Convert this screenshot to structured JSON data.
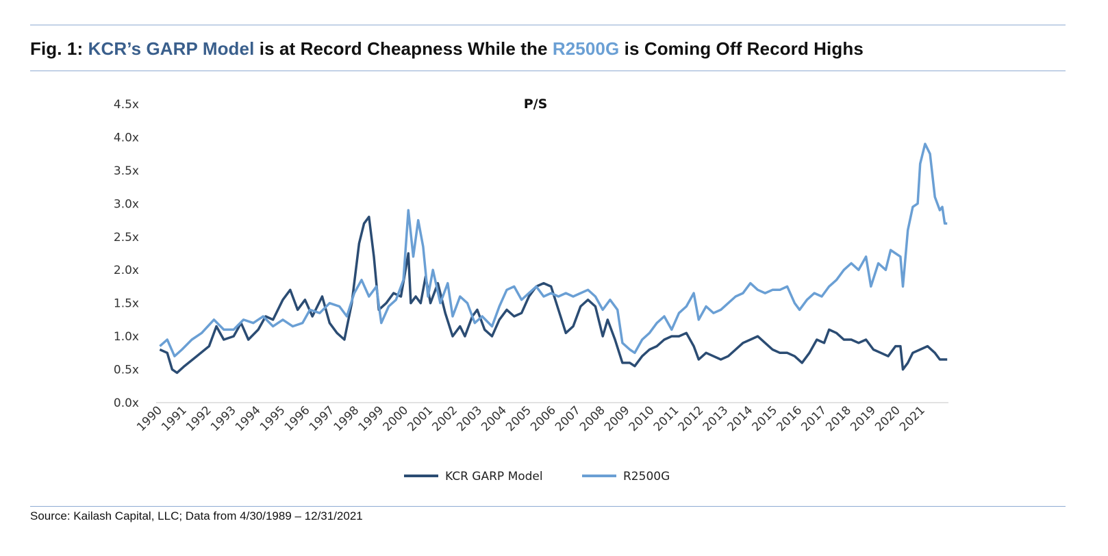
{
  "header": {
    "title_prefix": "Fig. 1: ",
    "title_hl1": "KCR’s GARP Model",
    "title_mid": " is at Record Cheapness While the ",
    "title_hl2": "R2500G",
    "title_suffix": " is Coming Off Record Highs"
  },
  "footer": {
    "source": "Source: Kailash Capital, LLC; Data from 4/30/1989 – 12/31/2021"
  },
  "chart_data": {
    "type": "line",
    "title": "P/S",
    "xlabel": "",
    "ylabel": "",
    "ylim": [
      0,
      4.5
    ],
    "y_ticks": [
      "0.0x",
      "0.5x",
      "1.0x",
      "1.5x",
      "2.0x",
      "2.5x",
      "3.0x",
      "3.5x",
      "4.0x",
      "4.5x"
    ],
    "x_ticks": [
      "1990",
      "1991",
      "1992",
      "1993",
      "1994",
      "1995",
      "1996",
      "1997",
      "1998",
      "1999",
      "2000",
      "2001",
      "2002",
      "2003",
      "2004",
      "2005",
      "2006",
      "2007",
      "2008",
      "2009",
      "2010",
      "2011",
      "2012",
      "2013",
      "2014",
      "2015",
      "2016",
      "2017",
      "2018",
      "2019",
      "2020",
      "2021"
    ],
    "grid": false,
    "legend": "bottom",
    "colors": {
      "KCR GARP Model": "#2b4c73",
      "R2500G": "#6a9fd4",
      "rules": "#8eaad2"
    },
    "series": [
      {
        "name": "KCR GARP Model",
        "points": [
          [
            1990.0,
            0.8
          ],
          [
            1990.3,
            0.75
          ],
          [
            1990.5,
            0.5
          ],
          [
            1990.7,
            0.45
          ],
          [
            1991.0,
            0.55
          ],
          [
            1991.5,
            0.7
          ],
          [
            1992.0,
            0.85
          ],
          [
            1992.3,
            1.15
          ],
          [
            1992.6,
            0.95
          ],
          [
            1993.0,
            1.0
          ],
          [
            1993.3,
            1.2
          ],
          [
            1993.6,
            0.95
          ],
          [
            1994.0,
            1.1
          ],
          [
            1994.3,
            1.3
          ],
          [
            1994.6,
            1.25
          ],
          [
            1995.0,
            1.55
          ],
          [
            1995.3,
            1.7
          ],
          [
            1995.6,
            1.4
          ],
          [
            1995.9,
            1.55
          ],
          [
            1996.2,
            1.3
          ],
          [
            1996.6,
            1.6
          ],
          [
            1996.9,
            1.2
          ],
          [
            1997.2,
            1.05
          ],
          [
            1997.5,
            0.95
          ],
          [
            1997.8,
            1.5
          ],
          [
            1998.1,
            2.4
          ],
          [
            1998.3,
            2.7
          ],
          [
            1998.5,
            2.8
          ],
          [
            1998.7,
            2.2
          ],
          [
            1998.9,
            1.4
          ],
          [
            1999.2,
            1.5
          ],
          [
            1999.5,
            1.65
          ],
          [
            1999.8,
            1.6
          ],
          [
            2000.1,
            2.25
          ],
          [
            2000.2,
            1.5
          ],
          [
            2000.4,
            1.6
          ],
          [
            2000.6,
            1.5
          ],
          [
            2000.8,
            1.9
          ],
          [
            2001.0,
            1.5
          ],
          [
            2001.3,
            1.8
          ],
          [
            2001.6,
            1.35
          ],
          [
            2001.9,
            1.0
          ],
          [
            2002.2,
            1.15
          ],
          [
            2002.4,
            1.0
          ],
          [
            2002.7,
            1.3
          ],
          [
            2002.9,
            1.4
          ],
          [
            2003.2,
            1.1
          ],
          [
            2003.5,
            1.0
          ],
          [
            2003.8,
            1.25
          ],
          [
            2004.1,
            1.4
          ],
          [
            2004.4,
            1.3
          ],
          [
            2004.7,
            1.35
          ],
          [
            2005.0,
            1.6
          ],
          [
            2005.3,
            1.75
          ],
          [
            2005.6,
            1.8
          ],
          [
            2005.9,
            1.75
          ],
          [
            2006.2,
            1.4
          ],
          [
            2006.5,
            1.05
          ],
          [
            2006.8,
            1.15
          ],
          [
            2007.1,
            1.45
          ],
          [
            2007.4,
            1.55
          ],
          [
            2007.7,
            1.45
          ],
          [
            2008.0,
            1.0
          ],
          [
            2008.2,
            1.25
          ],
          [
            2008.5,
            0.95
          ],
          [
            2008.8,
            0.6
          ],
          [
            2009.1,
            0.6
          ],
          [
            2009.3,
            0.55
          ],
          [
            2009.6,
            0.7
          ],
          [
            2009.9,
            0.8
          ],
          [
            2010.2,
            0.85
          ],
          [
            2010.5,
            0.95
          ],
          [
            2010.8,
            1.0
          ],
          [
            2011.1,
            1.0
          ],
          [
            2011.4,
            1.05
          ],
          [
            2011.7,
            0.85
          ],
          [
            2011.9,
            0.65
          ],
          [
            2012.2,
            0.75
          ],
          [
            2012.5,
            0.7
          ],
          [
            2012.8,
            0.65
          ],
          [
            2013.1,
            0.7
          ],
          [
            2013.4,
            0.8
          ],
          [
            2013.7,
            0.9
          ],
          [
            2014.0,
            0.95
          ],
          [
            2014.3,
            1.0
          ],
          [
            2014.6,
            0.9
          ],
          [
            2014.9,
            0.8
          ],
          [
            2015.2,
            0.75
          ],
          [
            2015.5,
            0.75
          ],
          [
            2015.8,
            0.7
          ],
          [
            2016.1,
            0.6
          ],
          [
            2016.4,
            0.75
          ],
          [
            2016.7,
            0.95
          ],
          [
            2017.0,
            0.9
          ],
          [
            2017.2,
            1.1
          ],
          [
            2017.5,
            1.05
          ],
          [
            2017.8,
            0.95
          ],
          [
            2018.1,
            0.95
          ],
          [
            2018.4,
            0.9
          ],
          [
            2018.7,
            0.95
          ],
          [
            2019.0,
            0.8
          ],
          [
            2019.3,
            0.75
          ],
          [
            2019.6,
            0.7
          ],
          [
            2019.9,
            0.85
          ],
          [
            2020.1,
            0.85
          ],
          [
            2020.2,
            0.5
          ],
          [
            2020.4,
            0.6
          ],
          [
            2020.6,
            0.75
          ],
          [
            2020.9,
            0.8
          ],
          [
            2021.2,
            0.85
          ],
          [
            2021.5,
            0.75
          ],
          [
            2021.7,
            0.65
          ],
          [
            2022.0,
            0.65
          ]
        ]
      },
      {
        "name": "R2500G",
        "points": [
          [
            1990.0,
            0.85
          ],
          [
            1990.3,
            0.95
          ],
          [
            1990.6,
            0.7
          ],
          [
            1990.9,
            0.8
          ],
          [
            1991.3,
            0.95
          ],
          [
            1991.7,
            1.05
          ],
          [
            1992.2,
            1.25
          ],
          [
            1992.6,
            1.1
          ],
          [
            1993.0,
            1.1
          ],
          [
            1993.4,
            1.25
          ],
          [
            1993.8,
            1.2
          ],
          [
            1994.2,
            1.3
          ],
          [
            1994.6,
            1.15
          ],
          [
            1995.0,
            1.25
          ],
          [
            1995.4,
            1.15
          ],
          [
            1995.8,
            1.2
          ],
          [
            1996.1,
            1.4
          ],
          [
            1996.5,
            1.35
          ],
          [
            1996.9,
            1.5
          ],
          [
            1997.3,
            1.45
          ],
          [
            1997.6,
            1.3
          ],
          [
            1997.9,
            1.65
          ],
          [
            1998.2,
            1.85
          ],
          [
            1998.5,
            1.6
          ],
          [
            1998.8,
            1.75
          ],
          [
            1999.0,
            1.2
          ],
          [
            1999.3,
            1.45
          ],
          [
            1999.6,
            1.55
          ],
          [
            1999.9,
            1.85
          ],
          [
            2000.1,
            2.9
          ],
          [
            2000.3,
            2.2
          ],
          [
            2000.5,
            2.75
          ],
          [
            2000.7,
            2.35
          ],
          [
            2000.9,
            1.6
          ],
          [
            2001.1,
            2.0
          ],
          [
            2001.4,
            1.5
          ],
          [
            2001.7,
            1.8
          ],
          [
            2001.9,
            1.3
          ],
          [
            2002.2,
            1.6
          ],
          [
            2002.5,
            1.5
          ],
          [
            2002.8,
            1.2
          ],
          [
            2003.1,
            1.3
          ],
          [
            2003.5,
            1.15
          ],
          [
            2003.8,
            1.45
          ],
          [
            2004.1,
            1.7
          ],
          [
            2004.4,
            1.75
          ],
          [
            2004.7,
            1.55
          ],
          [
            2005.0,
            1.65
          ],
          [
            2005.3,
            1.75
          ],
          [
            2005.6,
            1.6
          ],
          [
            2005.9,
            1.65
          ],
          [
            2006.2,
            1.6
          ],
          [
            2006.5,
            1.65
          ],
          [
            2006.8,
            1.6
          ],
          [
            2007.1,
            1.65
          ],
          [
            2007.4,
            1.7
          ],
          [
            2007.7,
            1.6
          ],
          [
            2008.0,
            1.4
          ],
          [
            2008.3,
            1.55
          ],
          [
            2008.6,
            1.4
          ],
          [
            2008.8,
            0.9
          ],
          [
            2009.1,
            0.8
          ],
          [
            2009.3,
            0.75
          ],
          [
            2009.6,
            0.95
          ],
          [
            2009.9,
            1.05
          ],
          [
            2010.2,
            1.2
          ],
          [
            2010.5,
            1.3
          ],
          [
            2010.8,
            1.1
          ],
          [
            2011.1,
            1.35
          ],
          [
            2011.4,
            1.45
          ],
          [
            2011.7,
            1.65
          ],
          [
            2011.9,
            1.25
          ],
          [
            2012.2,
            1.45
          ],
          [
            2012.5,
            1.35
          ],
          [
            2012.8,
            1.4
          ],
          [
            2013.1,
            1.5
          ],
          [
            2013.4,
            1.6
          ],
          [
            2013.7,
            1.65
          ],
          [
            2014.0,
            1.8
          ],
          [
            2014.3,
            1.7
          ],
          [
            2014.6,
            1.65
          ],
          [
            2014.9,
            1.7
          ],
          [
            2015.2,
            1.7
          ],
          [
            2015.5,
            1.75
          ],
          [
            2015.8,
            1.5
          ],
          [
            2016.0,
            1.4
          ],
          [
            2016.3,
            1.55
          ],
          [
            2016.6,
            1.65
          ],
          [
            2016.9,
            1.6
          ],
          [
            2017.2,
            1.75
          ],
          [
            2017.5,
            1.85
          ],
          [
            2017.8,
            2.0
          ],
          [
            2018.1,
            2.1
          ],
          [
            2018.4,
            2.0
          ],
          [
            2018.7,
            2.2
          ],
          [
            2018.9,
            1.75
          ],
          [
            2019.2,
            2.1
          ],
          [
            2019.5,
            2.0
          ],
          [
            2019.7,
            2.3
          ],
          [
            2019.9,
            2.25
          ],
          [
            2020.1,
            2.2
          ],
          [
            2020.2,
            1.75
          ],
          [
            2020.4,
            2.6
          ],
          [
            2020.6,
            2.95
          ],
          [
            2020.8,
            3.0
          ],
          [
            2020.9,
            3.6
          ],
          [
            2021.1,
            3.9
          ],
          [
            2021.3,
            3.75
          ],
          [
            2021.5,
            3.1
          ],
          [
            2021.7,
            2.9
          ],
          [
            2021.8,
            2.95
          ],
          [
            2021.9,
            2.7
          ],
          [
            2022.0,
            2.7
          ]
        ]
      }
    ]
  }
}
